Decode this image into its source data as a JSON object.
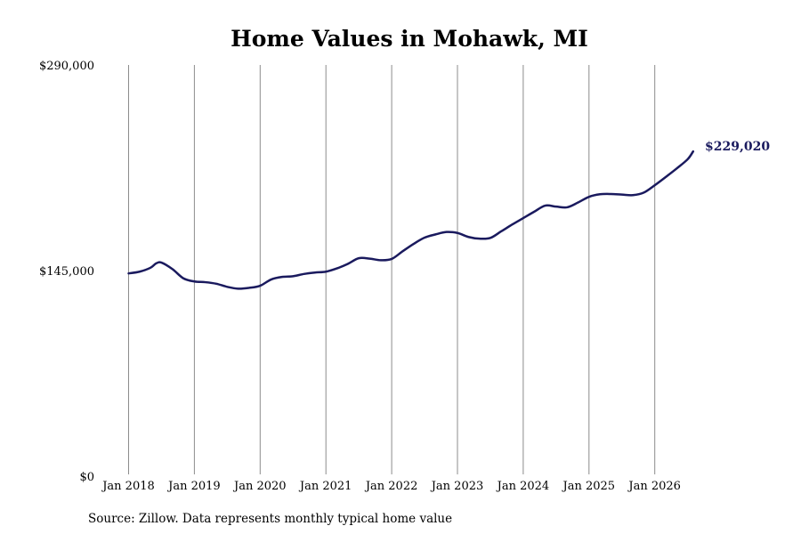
{
  "chart_data": {
    "type": "line",
    "title": "Home Values in Mohawk, MI",
    "xlabel": "",
    "ylabel": "",
    "ylim": [
      0,
      290000
    ],
    "y_ticks": [
      "$290,000",
      "$145,000",
      "$0"
    ],
    "y_tick_values": [
      290000,
      145000,
      0
    ],
    "x_ticks": [
      "Jan 2018",
      "Jan 2019",
      "Jan 2020",
      "Jan 2021",
      "Jan 2022",
      "Jan 2023",
      "Jan 2024",
      "Jan 2025",
      "Jan 2026"
    ],
    "x_tick_dates": [
      "2018-01",
      "2019-01",
      "2020-01",
      "2021-01",
      "2022-01",
      "2023-01",
      "2024-01",
      "2025-01",
      "2026-01"
    ],
    "grid": "vertical",
    "line_color": "#1a1a5e",
    "series": [
      {
        "x": [
          "2018-01",
          "2018-03",
          "2018-05",
          "2018-06",
          "2018-07",
          "2018-09",
          "2018-11",
          "2019-01",
          "2019-03",
          "2019-05",
          "2019-07",
          "2019-09",
          "2019-11",
          "2020-01",
          "2020-03",
          "2020-05",
          "2020-07",
          "2020-09",
          "2020-11",
          "2021-01",
          "2021-03",
          "2021-05",
          "2021-07",
          "2021-09",
          "2021-11",
          "2022-01",
          "2022-03",
          "2022-05",
          "2022-07",
          "2022-09",
          "2022-11",
          "2023-01",
          "2023-03",
          "2023-05",
          "2023-07",
          "2023-09",
          "2023-11",
          "2024-01",
          "2024-03",
          "2024-05",
          "2024-07",
          "2024-09",
          "2024-11",
          "2025-01",
          "2025-03",
          "2025-05",
          "2025-07",
          "2025-09",
          "2025-11",
          "2026-01",
          "2026-03",
          "2026-05",
          "2026-07",
          "2026-08"
        ],
        "values": [
          143000,
          144200,
          147000,
          150000,
          150600,
          146000,
          139500,
          137300,
          136800,
          135700,
          133500,
          132200,
          132800,
          134300,
          138700,
          140500,
          141000,
          142600,
          143600,
          144200,
          146500,
          149700,
          153700,
          153400,
          152300,
          153200,
          158600,
          163800,
          168200,
          170500,
          172200,
          171500,
          168700,
          167500,
          168000,
          172700,
          177500,
          182000,
          186500,
          190800,
          190100,
          189600,
          193000,
          197000,
          198800,
          199000,
          198600,
          198200,
          200000,
          205200,
          211000,
          217000,
          223500,
          229020
        ]
      }
    ],
    "end_label": "$229,020",
    "source": "Source: Zillow. Data represents monthly typical home value"
  }
}
